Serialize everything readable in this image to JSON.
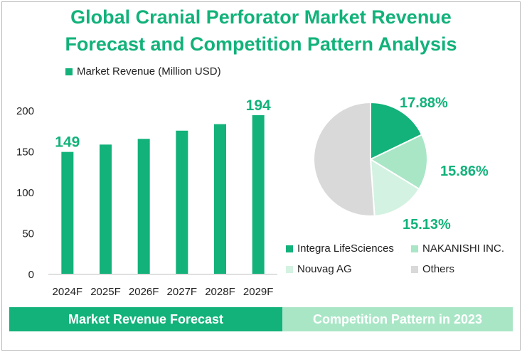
{
  "title_line1": "Global Cranial Perforator Market Revenue",
  "title_line2": "Forecast and Competition Pattern Analysis",
  "colors": {
    "accent": "#12b27a",
    "light_green": "#a9e6c6",
    "pale_green": "#d3f2e1",
    "gray": "#d9d9d9"
  },
  "chart_data": [
    {
      "type": "bar",
      "legend": "Market Revenue (Million USD)",
      "categories": [
        "2024F",
        "2025F",
        "2026F",
        "2027F",
        "2028F",
        "2029F"
      ],
      "values": [
        149,
        158,
        165,
        175,
        183,
        194
      ],
      "labeled": {
        "0": "149",
        "5": "194"
      },
      "yticks": [
        "0",
        "50",
        "100",
        "150",
        "200"
      ],
      "ylim": [
        0,
        200
      ],
      "color": "#12b27a"
    },
    {
      "type": "pie",
      "title": "Competition Pattern in 2023",
      "slices": [
        {
          "name": "Integra LifeSciences",
          "value": 17.88,
          "label": "17.88%",
          "color": "#12b27a"
        },
        {
          "name": "NAKANISHI INC.",
          "value": 15.86,
          "label": "15.86%",
          "color": "#a9e6c6"
        },
        {
          "name": "Nouvag AG",
          "value": 15.13,
          "label": "15.13%",
          "color": "#d3f2e1"
        },
        {
          "name": "Others",
          "value": 51.13,
          "label": "",
          "color": "#d9d9d9"
        }
      ]
    }
  ],
  "footer": {
    "left": "Market Revenue Forecast",
    "right": "Competition Pattern in 2023"
  }
}
